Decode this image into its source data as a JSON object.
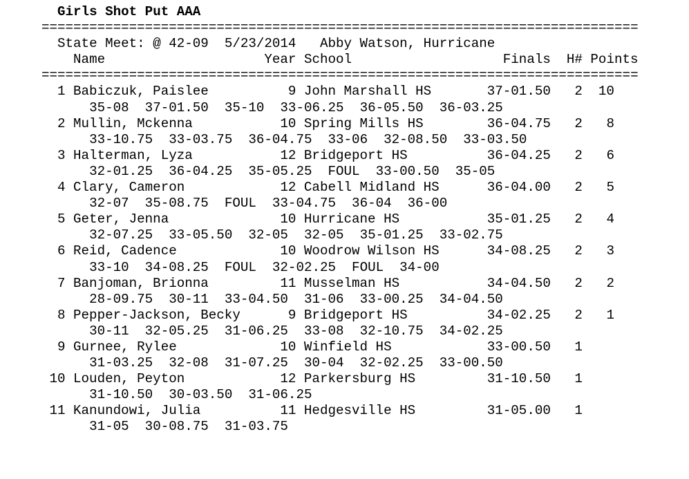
{
  "title": "Girls Shot Put AAA",
  "separator": "===========================================================================",
  "record_line": "State Meet: @ 42-09  5/23/2014   Abby Watson, Hurricane",
  "columns": {
    "name": "Name",
    "year": "Year",
    "school": "School",
    "finals": "Finals",
    "heat": "H#",
    "points": "Points"
  },
  "results": [
    {
      "place": "1",
      "name": "Babiczuk, Paislee",
      "year": "9",
      "school": "John Marshall HS",
      "finals": "37-01.50",
      "heat": "2",
      "points": "10",
      "attempts": [
        "35-08",
        "37-01.50",
        "35-10",
        "33-06.25",
        "36-05.50",
        "36-03.25"
      ]
    },
    {
      "place": "2",
      "name": "Mullin, Mckenna",
      "year": "10",
      "school": "Spring Mills HS",
      "finals": "36-04.75",
      "heat": "2",
      "points": "8",
      "attempts": [
        "33-10.75",
        "33-03.75",
        "36-04.75",
        "33-06",
        "32-08.50",
        "33-03.50"
      ]
    },
    {
      "place": "3",
      "name": "Halterman, Lyza",
      "year": "12",
      "school": "Bridgeport HS",
      "finals": "36-04.25",
      "heat": "2",
      "points": "6",
      "attempts": [
        "32-01.25",
        "36-04.25",
        "35-05.25",
        "FOUL",
        "33-00.50",
        "35-05"
      ]
    },
    {
      "place": "4",
      "name": "Clary, Cameron",
      "year": "12",
      "school": "Cabell Midland HS",
      "finals": "36-04.00",
      "heat": "2",
      "points": "5",
      "attempts": [
        "32-07",
        "35-08.75",
        "FOUL",
        "33-04.75",
        "36-04",
        "36-00"
      ]
    },
    {
      "place": "5",
      "name": "Geter, Jenna",
      "year": "10",
      "school": "Hurricane HS",
      "finals": "35-01.25",
      "heat": "2",
      "points": "4",
      "attempts": [
        "32-07.25",
        "33-05.50",
        "32-05",
        "32-05",
        "35-01.25",
        "33-02.75"
      ]
    },
    {
      "place": "6",
      "name": "Reid, Cadence",
      "year": "10",
      "school": "Woodrow Wilson HS",
      "finals": "34-08.25",
      "heat": "2",
      "points": "3",
      "attempts": [
        "33-10",
        "34-08.25",
        "FOUL",
        "32-02.25",
        "FOUL",
        "34-00"
      ]
    },
    {
      "place": "7",
      "name": "Banjoman, Brionna",
      "year": "11",
      "school": "Musselman HS",
      "finals": "34-04.50",
      "heat": "2",
      "points": "2",
      "attempts": [
        "28-09.75",
        "30-11",
        "33-04.50",
        "31-06",
        "33-00.25",
        "34-04.50"
      ]
    },
    {
      "place": "8",
      "name": "Pepper-Jackson, Becky",
      "year": "9",
      "school": "Bridgeport HS",
      "finals": "34-02.25",
      "heat": "2",
      "points": "1",
      "attempts": [
        "30-11",
        "32-05.25",
        "31-06.25",
        "33-08",
        "32-10.75",
        "34-02.25"
      ]
    },
    {
      "place": "9",
      "name": "Gurnee, Rylee",
      "year": "10",
      "school": "Winfield HS",
      "finals": "33-00.50",
      "heat": "1",
      "points": "",
      "attempts": [
        "31-03.25",
        "32-08",
        "31-07.25",
        "30-04",
        "32-02.25",
        "33-00.50"
      ]
    },
    {
      "place": "10",
      "name": "Louden, Peyton",
      "year": "12",
      "school": "Parkersburg HS",
      "finals": "31-10.50",
      "heat": "1",
      "points": "",
      "attempts": [
        "31-10.50",
        "30-03.50",
        "31-06.25"
      ]
    },
    {
      "place": "11",
      "name": "Kanundowi, Julia",
      "year": "11",
      "school": "Hedgesville HS",
      "finals": "31-05.00",
      "heat": "1",
      "points": "",
      "attempts": [
        "31-05",
        "30-08.75",
        "31-03.75"
      ]
    }
  ]
}
